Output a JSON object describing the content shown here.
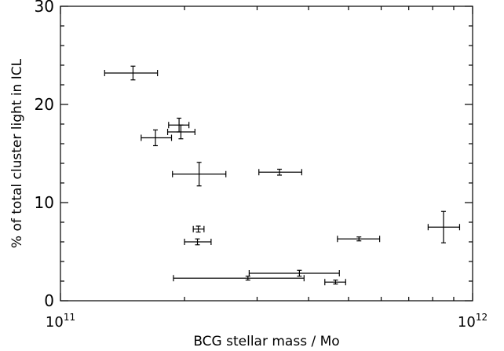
{
  "chart_data": {
    "type": "scatter",
    "title": "",
    "xlabel": "BCG stellar mass / Mo",
    "ylabel": "% of total cluster light in ICL",
    "x_scale": "log",
    "xlim": [
      100000000000.0,
      1000000000000.0
    ],
    "ylim": [
      0,
      30
    ],
    "x_tick_labels": [
      {
        "value": 100000000000.0,
        "base": "10",
        "exp": "11"
      },
      {
        "value": 1000000000000.0,
        "base": "10",
        "exp": "12"
      }
    ],
    "y_tick_labels": [
      {
        "value": 0,
        "label": "0"
      },
      {
        "value": 10,
        "label": "10"
      },
      {
        "value": 20,
        "label": "20"
      },
      {
        "value": 30,
        "label": "30"
      }
    ],
    "grid": false,
    "points": [
      {
        "x": 150000000000.0,
        "y": 23.2,
        "x_lo": 128000000000.0,
        "x_hi": 172000000000.0,
        "y_err": 0.7
      },
      {
        "x": 194000000000.0,
        "y": 17.9,
        "x_lo": 183000000000.0,
        "x_hi": 205000000000.0,
        "y_err": 0.7
      },
      {
        "x": 196000000000.0,
        "y": 17.2,
        "x_lo": 182000000000.0,
        "x_hi": 212000000000.0,
        "y_err": 0.7
      },
      {
        "x": 170000000000.0,
        "y": 16.6,
        "x_lo": 157000000000.0,
        "x_hi": 186000000000.0,
        "y_err": 0.8
      },
      {
        "x": 217000000000.0,
        "y": 12.9,
        "x_lo": 187000000000.0,
        "x_hi": 252000000000.0,
        "y_err": 1.2
      },
      {
        "x": 340000000000.0,
        "y": 13.1,
        "x_lo": 303000000000.0,
        "x_hi": 385000000000.0,
        "y_err": 0.3
      },
      {
        "x": 216000000000.0,
        "y": 7.3,
        "x_lo": 210000000000.0,
        "x_hi": 223000000000.0,
        "y_err": 0.3
      },
      {
        "x": 215000000000.0,
        "y": 6.0,
        "x_lo": 200000000000.0,
        "x_hi": 232000000000.0,
        "y_err": 0.3
      },
      {
        "x": 530000000000.0,
        "y": 6.3,
        "x_lo": 470000000000.0,
        "x_hi": 595000000000.0,
        "y_err": 0.2
      },
      {
        "x": 850000000000.0,
        "y": 7.5,
        "x_lo": 780000000000.0,
        "x_hi": 930000000000.0,
        "y_err": 1.6
      },
      {
        "x": 285000000000.0,
        "y": 2.3,
        "x_lo": 188000000000.0,
        "x_hi": 390000000000.0,
        "y_err": 0.2
      },
      {
        "x": 380000000000.0,
        "y": 2.8,
        "x_lo": 287000000000.0,
        "x_hi": 475000000000.0,
        "y_err": 0.3
      },
      {
        "x": 465000000000.0,
        "y": 1.9,
        "x_lo": 438000000000.0,
        "x_hi": 492000000000.0,
        "y_err": 0.2
      }
    ]
  }
}
